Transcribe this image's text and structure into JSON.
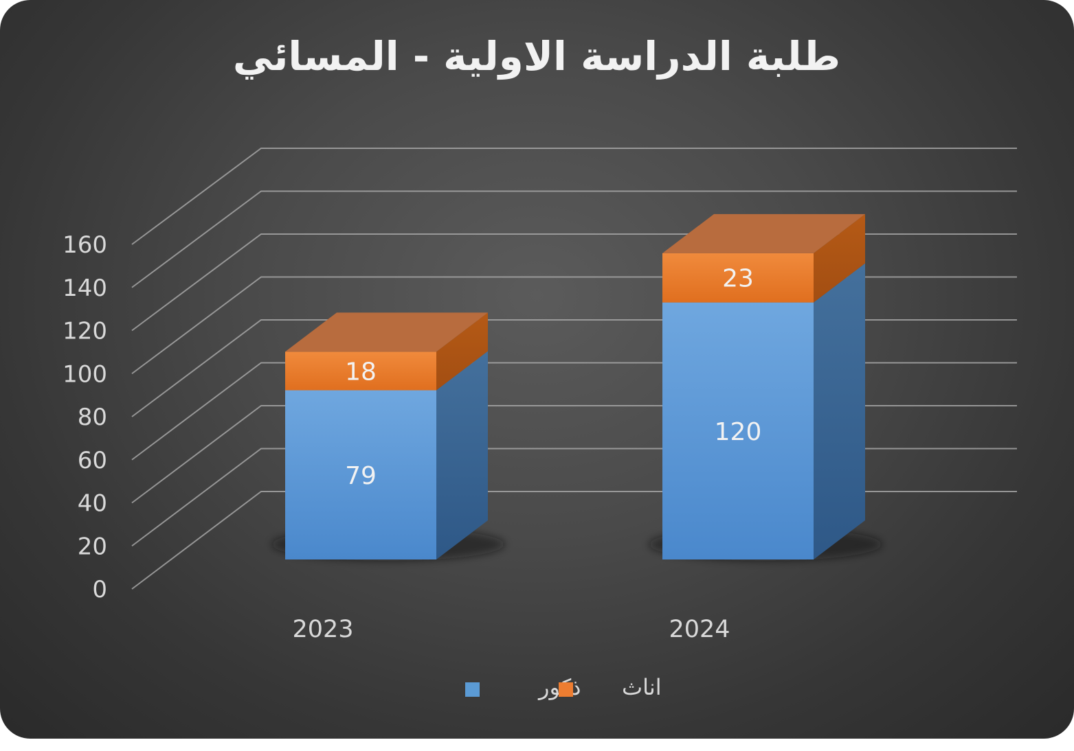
{
  "chart_data": {
    "type": "bar",
    "stacked": true,
    "three_d": true,
    "title": "طلبة الدراسة الاولية - المسائي",
    "categories": [
      "2023",
      "2024"
    ],
    "series": [
      {
        "name": "ذكور",
        "values": [
          79,
          120
        ],
        "color": "#5b9bd5"
      },
      {
        "name": "اناث",
        "values": [
          18,
          23
        ],
        "color": "#ed7d31"
      }
    ],
    "ylim": [
      0,
      160
    ],
    "yticks": [
      "0",
      "20",
      "40",
      "60",
      "80",
      "100",
      "120",
      "140",
      "160"
    ],
    "grid": true,
    "legend_position": "bottom",
    "data_labels": true
  },
  "colors": {
    "background": "#3c3c3c",
    "text": "#d9d9d9",
    "gridline": "#a6a6a6"
  }
}
